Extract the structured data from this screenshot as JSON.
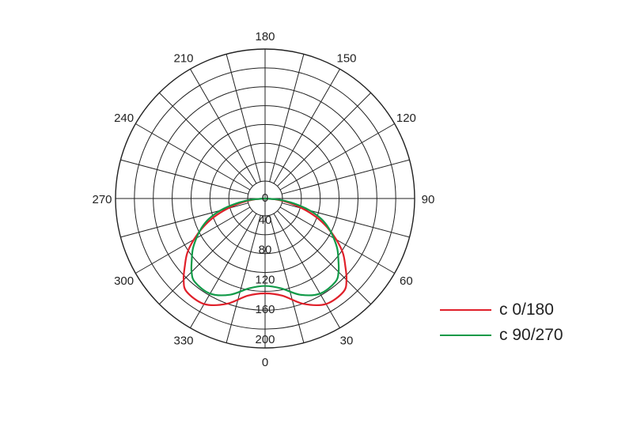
{
  "chart_data": {
    "type": "polar-line",
    "title": "",
    "angle_ticks": [
      0,
      30,
      60,
      90,
      120,
      150,
      180,
      210,
      240,
      270,
      300,
      330
    ],
    "angle_zero": "bottom",
    "angle_direction": "counterclockwise",
    "angle_grid_step": 15,
    "radial_ticks": [
      0,
      40,
      80,
      120,
      160,
      200
    ],
    "rlim": [
      0,
      200
    ],
    "grid": true,
    "legend_position": "right",
    "series": [
      {
        "name": "c 0/180",
        "color": "#e0202a",
        "angles": [
          0,
          10,
          20,
          30,
          40,
          45,
          50,
          55,
          60,
          65,
          70,
          75,
          80,
          85,
          90
        ],
        "values": [
          127,
          132,
          150,
          163,
          163,
          154,
          140,
          127,
          110,
          92,
          73,
          52,
          32,
          15,
          0
        ],
        "symmetric": true
      },
      {
        "name": "c 90/270",
        "color": "#119a48",
        "angles": [
          0,
          10,
          20,
          30,
          40,
          45,
          50,
          55,
          60,
          65,
          70,
          75,
          80,
          85,
          90
        ],
        "values": [
          117,
          122,
          137,
          147,
          146,
          139,
          128,
          118,
          106,
          94,
          80,
          62,
          40,
          20,
          0
        ],
        "symmetric": true
      }
    ]
  }
}
